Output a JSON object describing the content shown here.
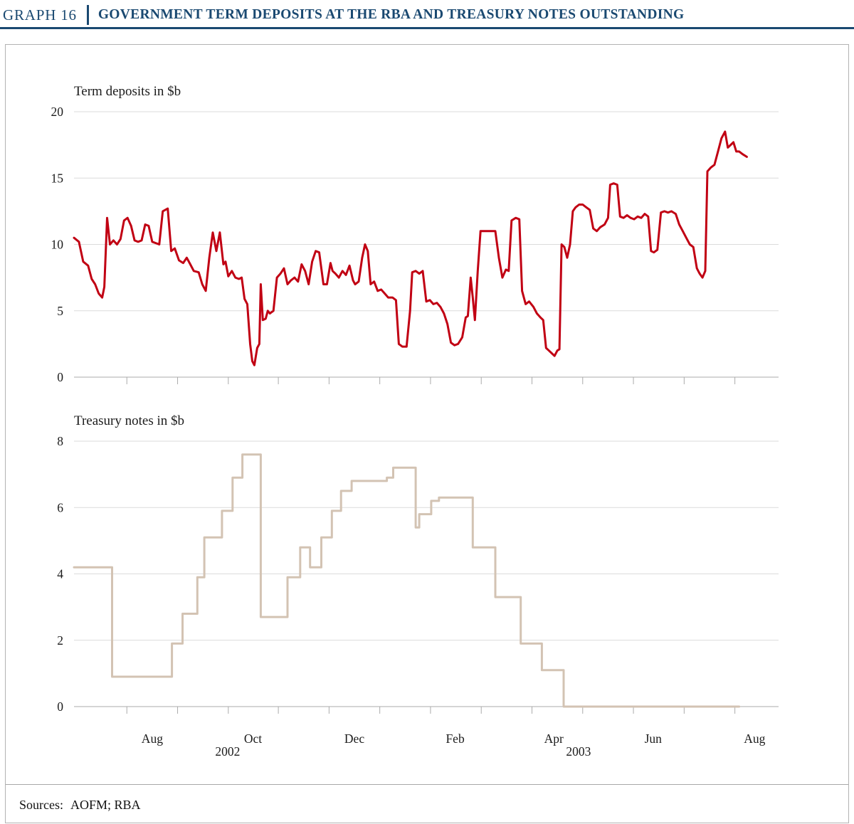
{
  "header": {
    "graph_label": "GRAPH 16",
    "title": "GOVERNMENT TERM DEPOSITS AT THE RBA AND TREASURY NOTES OUTSTANDING"
  },
  "footer": {
    "sources_label": "Sources:",
    "sources_value": "AOFM; RBA"
  },
  "colors": {
    "accent_navy": "#1A4971",
    "term_deposits_line": "#C10013",
    "treasury_notes_line": "#D3C3B3",
    "grid": "#DBDBDB",
    "axis": "#ABABAB",
    "text": "#1b1b1b",
    "box_border": "#b3b3b3"
  },
  "x_axis": {
    "tick_positions_pct": [
      7.5,
      14.7,
      21.9,
      29.0,
      36.2,
      43.4,
      50.6,
      57.8,
      65.0,
      72.2,
      79.4,
      86.6,
      93.8
    ],
    "labels": [
      {
        "text": "Aug",
        "pos_pct": 11.1
      },
      {
        "text": "Oct",
        "pos_pct": 25.4
      },
      {
        "text": "Dec",
        "pos_pct": 39.8
      },
      {
        "text": "Feb",
        "pos_pct": 54.1
      },
      {
        "text": "Apr",
        "pos_pct": 68.1
      },
      {
        "text": "Jun",
        "pos_pct": 82.2
      },
      {
        "text": "Aug",
        "pos_pct": 96.6
      }
    ],
    "year_labels": [
      {
        "text": "2002",
        "pos_pct": 21.8
      },
      {
        "text": "2003",
        "pos_pct": 71.6
      }
    ],
    "note": "x units are percent of plot width; span runs mid-June 2002 to mid-August 2003"
  },
  "chart_data": [
    {
      "type": "line",
      "title": "Term deposits in $b",
      "ylabel": "Term deposits in $b",
      "ylim": [
        0,
        20
      ],
      "yticks": [
        0,
        5,
        10,
        15,
        20
      ],
      "grid": true,
      "legend": false,
      "series": [
        {
          "name": "Government term deposits at the RBA",
          "slug": "term-deposits-line",
          "color": "#C10013",
          "width": 3,
          "step": false,
          "points": [
            [
              0,
              10.5
            ],
            [
              0.7,
              10.2
            ],
            [
              1.3,
              8.7
            ],
            [
              2.0,
              8.4
            ],
            [
              2.5,
              7.4
            ],
            [
              3.0,
              7.0
            ],
            [
              3.5,
              6.3
            ],
            [
              4.0,
              6.0
            ],
            [
              4.3,
              6.8
            ],
            [
              4.7,
              12.0
            ],
            [
              5.1,
              10.0
            ],
            [
              5.6,
              10.3
            ],
            [
              6.1,
              10.0
            ],
            [
              6.6,
              10.4
            ],
            [
              7.1,
              11.8
            ],
            [
              7.6,
              12.0
            ],
            [
              8.1,
              11.4
            ],
            [
              8.6,
              10.3
            ],
            [
              9.1,
              10.2
            ],
            [
              9.6,
              10.3
            ],
            [
              10.1,
              11.5
            ],
            [
              10.6,
              11.4
            ],
            [
              11.1,
              10.2
            ],
            [
              11.6,
              10.1
            ],
            [
              12.1,
              10.0
            ],
            [
              12.6,
              12.5
            ],
            [
              13.3,
              12.7
            ],
            [
              13.8,
              9.5
            ],
            [
              14.3,
              9.7
            ],
            [
              14.9,
              8.8
            ],
            [
              15.5,
              8.6
            ],
            [
              16.0,
              9.0
            ],
            [
              16.5,
              8.5
            ],
            [
              17.0,
              8.0
            ],
            [
              17.7,
              7.9
            ],
            [
              18.2,
              7.0
            ],
            [
              18.7,
              6.5
            ],
            [
              19.2,
              9.0
            ],
            [
              19.7,
              10.9
            ],
            [
              20.2,
              9.5
            ],
            [
              20.7,
              10.9
            ],
            [
              21.2,
              8.5
            ],
            [
              21.5,
              8.7
            ],
            [
              21.9,
              7.6
            ],
            [
              22.4,
              8.0
            ],
            [
              22.9,
              7.5
            ],
            [
              23.4,
              7.4
            ],
            [
              23.8,
              7.5
            ],
            [
              24.2,
              5.9
            ],
            [
              24.6,
              5.5
            ],
            [
              25.0,
              2.5
            ],
            [
              25.3,
              1.2
            ],
            [
              25.6,
              0.9
            ],
            [
              26.0,
              2.2
            ],
            [
              26.3,
              2.5
            ],
            [
              26.5,
              7.0
            ],
            [
              26.8,
              4.3
            ],
            [
              27.2,
              4.4
            ],
            [
              27.5,
              5.0
            ],
            [
              27.8,
              4.8
            ],
            [
              28.3,
              5.0
            ],
            [
              28.8,
              7.5
            ],
            [
              29.3,
              7.8
            ],
            [
              29.8,
              8.2
            ],
            [
              30.3,
              7.0
            ],
            [
              30.8,
              7.3
            ],
            [
              31.3,
              7.5
            ],
            [
              31.8,
              7.2
            ],
            [
              32.3,
              8.5
            ],
            [
              32.8,
              8.0
            ],
            [
              33.3,
              7.0
            ],
            [
              33.8,
              8.7
            ],
            [
              34.3,
              9.5
            ],
            [
              34.8,
              9.4
            ],
            [
              35.4,
              7.0
            ],
            [
              35.9,
              7.0
            ],
            [
              36.4,
              8.6
            ],
            [
              36.7,
              8.0
            ],
            [
              37.1,
              7.8
            ],
            [
              37.6,
              7.5
            ],
            [
              38.1,
              8.0
            ],
            [
              38.6,
              7.7
            ],
            [
              39.1,
              8.4
            ],
            [
              39.6,
              7.3
            ],
            [
              39.9,
              7.0
            ],
            [
              40.4,
              7.2
            ],
            [
              40.9,
              9.0
            ],
            [
              41.3,
              10.0
            ],
            [
              41.7,
              9.5
            ],
            [
              42.1,
              7.0
            ],
            [
              42.6,
              7.2
            ],
            [
              43.1,
              6.5
            ],
            [
              43.6,
              6.6
            ],
            [
              44.1,
              6.3
            ],
            [
              44.6,
              6.0
            ],
            [
              45.2,
              6.0
            ],
            [
              45.7,
              5.8
            ],
            [
              46.1,
              2.5
            ],
            [
              46.6,
              2.3
            ],
            [
              47.2,
              2.3
            ],
            [
              47.7,
              5.0
            ],
            [
              48.0,
              7.9
            ],
            [
              48.5,
              8.0
            ],
            [
              49.0,
              7.8
            ],
            [
              49.5,
              8.0
            ],
            [
              50.0,
              5.7
            ],
            [
              50.5,
              5.8
            ],
            [
              51.0,
              5.5
            ],
            [
              51.5,
              5.6
            ],
            [
              52.0,
              5.3
            ],
            [
              52.5,
              4.8
            ],
            [
              53.0,
              4.0
            ],
            [
              53.5,
              2.6
            ],
            [
              54.0,
              2.4
            ],
            [
              54.5,
              2.5
            ],
            [
              55.1,
              3.0
            ],
            [
              55.6,
              4.5
            ],
            [
              55.9,
              4.6
            ],
            [
              56.3,
              7.5
            ],
            [
              56.6,
              6.0
            ],
            [
              56.9,
              4.3
            ],
            [
              57.3,
              8.0
            ],
            [
              57.7,
              11.0
            ],
            [
              58.3,
              11.0
            ],
            [
              59.1,
              11.0
            ],
            [
              59.8,
              11.0
            ],
            [
              60.3,
              9.0
            ],
            [
              60.8,
              7.5
            ],
            [
              61.3,
              8.1
            ],
            [
              61.7,
              8.0
            ],
            [
              62.1,
              11.8
            ],
            [
              62.7,
              12.0
            ],
            [
              63.2,
              11.9
            ],
            [
              63.6,
              6.5
            ],
            [
              64.1,
              5.5
            ],
            [
              64.6,
              5.7
            ],
            [
              65.2,
              5.3
            ],
            [
              65.7,
              4.8
            ],
            [
              66.2,
              4.5
            ],
            [
              66.6,
              4.3
            ],
            [
              67.0,
              2.2
            ],
            [
              67.4,
              2.0
            ],
            [
              67.8,
              1.8
            ],
            [
              68.2,
              1.6
            ],
            [
              68.6,
              2.0
            ],
            [
              68.9,
              2.1
            ],
            [
              69.2,
              10.0
            ],
            [
              69.6,
              9.8
            ],
            [
              70.0,
              9.0
            ],
            [
              70.4,
              10.0
            ],
            [
              70.8,
              12.5
            ],
            [
              71.2,
              12.8
            ],
            [
              71.7,
              13.0
            ],
            [
              72.2,
              13.0
            ],
            [
              72.7,
              12.8
            ],
            [
              73.2,
              12.6
            ],
            [
              73.7,
              11.2
            ],
            [
              74.2,
              11.0
            ],
            [
              74.7,
              11.3
            ],
            [
              75.3,
              11.5
            ],
            [
              75.8,
              12.0
            ],
            [
              76.1,
              14.5
            ],
            [
              76.6,
              14.6
            ],
            [
              77.1,
              14.5
            ],
            [
              77.5,
              12.1
            ],
            [
              78.0,
              12.0
            ],
            [
              78.5,
              12.2
            ],
            [
              79.0,
              12.0
            ],
            [
              79.5,
              11.9
            ],
            [
              80.0,
              12.1
            ],
            [
              80.5,
              12.0
            ],
            [
              81.0,
              12.3
            ],
            [
              81.5,
              12.1
            ],
            [
              81.9,
              9.5
            ],
            [
              82.3,
              9.4
            ],
            [
              82.8,
              9.6
            ],
            [
              83.3,
              12.4
            ],
            [
              83.8,
              12.5
            ],
            [
              84.3,
              12.4
            ],
            [
              84.8,
              12.5
            ],
            [
              85.4,
              12.3
            ],
            [
              85.9,
              11.5
            ],
            [
              86.4,
              11.0
            ],
            [
              86.9,
              10.5
            ],
            [
              87.4,
              10.0
            ],
            [
              87.9,
              9.8
            ],
            [
              88.4,
              8.2
            ],
            [
              88.8,
              7.8
            ],
            [
              89.2,
              7.5
            ],
            [
              89.6,
              8.0
            ],
            [
              89.9,
              15.5
            ],
            [
              90.4,
              15.8
            ],
            [
              90.9,
              16.0
            ],
            [
              91.4,
              17.0
            ],
            [
              91.9,
              18.0
            ],
            [
              92.4,
              18.5
            ],
            [
              92.8,
              17.3
            ],
            [
              93.2,
              17.5
            ],
            [
              93.6,
              17.7
            ],
            [
              94.0,
              17.0
            ],
            [
              94.4,
              17.0
            ],
            [
              94.9,
              16.8
            ],
            [
              95.5,
              16.6
            ]
          ]
        }
      ]
    },
    {
      "type": "line",
      "title": "Treasury notes in $b",
      "ylabel": "Treasury notes in $b",
      "ylim": [
        0,
        8
      ],
      "yticks": [
        0,
        2,
        4,
        6,
        8
      ],
      "grid": true,
      "legend": false,
      "series": [
        {
          "name": "Treasury notes outstanding",
          "slug": "treasury-notes-line",
          "color": "#D3C3B3",
          "width": 3,
          "step": true,
          "x_end": 94.4,
          "points": [
            [
              0,
              4.2
            ],
            [
              5.4,
              0.9
            ],
            [
              13.9,
              1.9
            ],
            [
              15.4,
              2.8
            ],
            [
              17.5,
              3.9
            ],
            [
              18.5,
              5.1
            ],
            [
              21.0,
              5.9
            ],
            [
              22.5,
              6.9
            ],
            [
              23.9,
              7.6
            ],
            [
              26.5,
              2.7
            ],
            [
              30.3,
              3.9
            ],
            [
              32.1,
              4.8
            ],
            [
              33.5,
              4.2
            ],
            [
              35.1,
              5.1
            ],
            [
              36.6,
              5.9
            ],
            [
              37.9,
              6.5
            ],
            [
              39.4,
              6.8
            ],
            [
              44.4,
              6.9
            ],
            [
              45.3,
              7.2
            ],
            [
              48.5,
              5.4
            ],
            [
              49.0,
              5.8
            ],
            [
              50.7,
              6.2
            ],
            [
              51.8,
              6.3
            ],
            [
              56.6,
              4.8
            ],
            [
              59.8,
              3.3
            ],
            [
              63.4,
              1.9
            ],
            [
              66.4,
              1.1
            ],
            [
              69.5,
              0.0
            ]
          ]
        }
      ]
    }
  ]
}
